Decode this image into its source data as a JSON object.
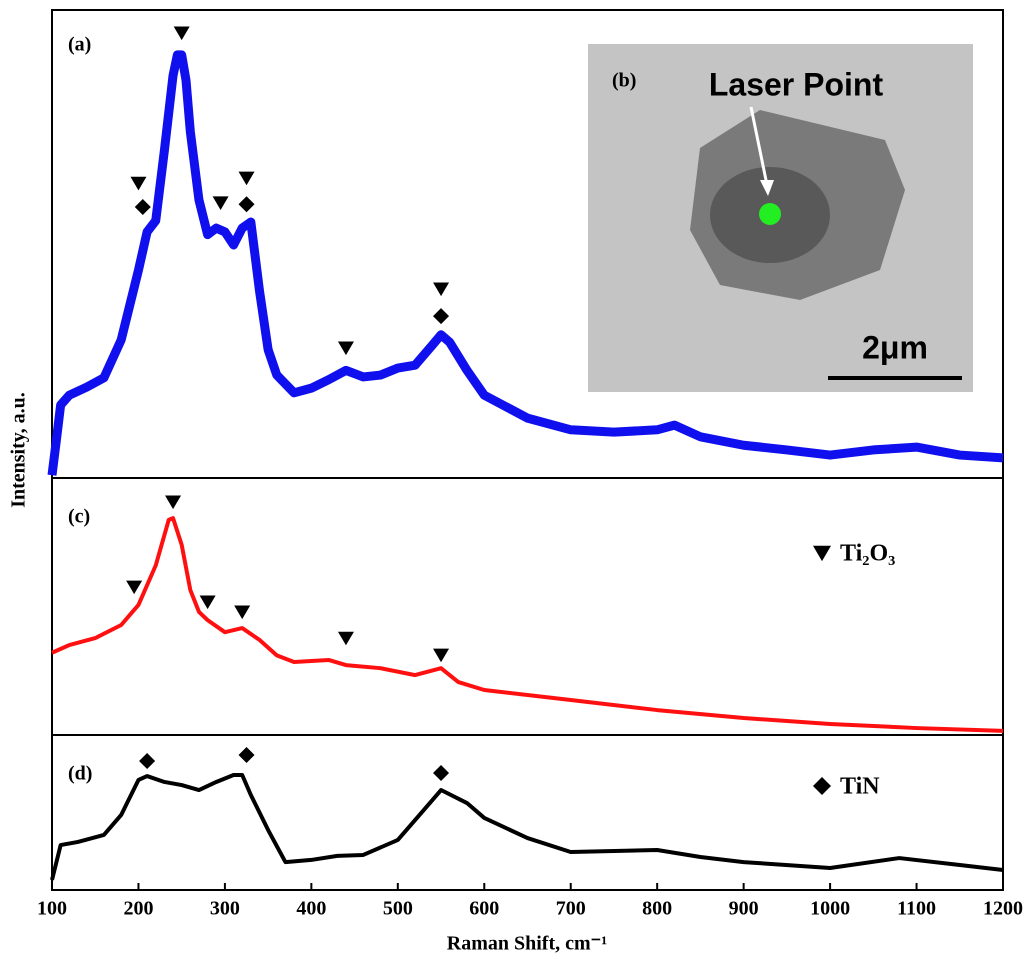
{
  "chart_data": [
    {
      "type": "line",
      "label": "(a)",
      "ylabel": "Intensity, a.u.",
      "color": "#1010ee",
      "xlim": [
        100,
        1200
      ],
      "ylim": [
        0,
        100
      ],
      "x": [
        100,
        105,
        110,
        120,
        140,
        160,
        180,
        200,
        210,
        220,
        230,
        240,
        245,
        250,
        255,
        260,
        270,
        280,
        290,
        300,
        310,
        320,
        330,
        340,
        350,
        360,
        380,
        400,
        420,
        440,
        460,
        480,
        500,
        520,
        540,
        550,
        560,
        580,
        600,
        650,
        700,
        750,
        800,
        820,
        850,
        900,
        950,
        1000,
        1050,
        1100,
        1150,
        1200
      ],
      "values": [
        0.6,
        8,
        15.6,
        17.7,
        19.4,
        21.4,
        29.5,
        44.4,
        52.6,
        55,
        70,
        86,
        90.4,
        90.4,
        85,
        74,
        59.4,
        52,
        53.4,
        52.6,
        49.8,
        53.4,
        54.7,
        40,
        27.4,
        22,
        18.2,
        19.2,
        21,
        23,
        21.6,
        22,
        23.5,
        24.1,
        28.4,
        30.6,
        29,
        23,
        17.7,
        12.8,
        10.3,
        9.8,
        10.3,
        11.3,
        8.8,
        7,
        6,
        4.9,
        6,
        6.6,
        4.9,
        4.3
      ],
      "peaks": [
        {
          "marker": "triangle",
          "x": [
            200,
            250,
            295,
            325,
            440,
            550
          ],
          "values": [
            63,
            95.1,
            58.8,
            64.1,
            27.8,
            40.4
          ]
        },
        {
          "marker": "diamond",
          "x": [
            205,
            325,
            550
          ],
          "values": [
            57.9,
            58.5,
            34.6
          ]
        }
      ],
      "inset": {
        "label": "(b)",
        "text": "Laser Point",
        "scale_bar": "2μm"
      }
    },
    {
      "type": "line",
      "label": "(c)",
      "color": "#ff1010",
      "xlim": [
        100,
        1200
      ],
      "ylim": [
        0,
        100
      ],
      "x": [
        100,
        120,
        150,
        180,
        200,
        220,
        235,
        240,
        250,
        260,
        270,
        280,
        300,
        320,
        340,
        360,
        380,
        420,
        440,
        480,
        520,
        550,
        570,
        600,
        700,
        800,
        900,
        1000,
        1100,
        1200
      ],
      "values": [
        32,
        35,
        37.7,
        42.8,
        50.6,
        66,
        83.7,
        84.4,
        74,
        56.4,
        47.9,
        44.7,
        40,
        41.6,
        37,
        31,
        28.4,
        29.2,
        27.2,
        26,
        23.3,
        26,
        20.6,
        17.5,
        13.6,
        9.7,
        6.6,
        4.3,
        2.7,
        1.6
      ],
      "peaks": [
        {
          "marker": "triangle",
          "x": [
            195,
            240,
            280,
            320,
            440,
            550
          ],
          "values": [
            57.6,
            90.7,
            51.8,
            47.9,
            37.7,
            31.1
          ]
        }
      ],
      "legend": {
        "marker": "triangle",
        "text": "Ti₂O₃"
      }
    },
    {
      "type": "line",
      "label": "(d)",
      "color": "#000000",
      "xlim": [
        100,
        1200
      ],
      "ylim": [
        0,
        100
      ],
      "x": [
        100,
        110,
        130,
        160,
        180,
        200,
        210,
        230,
        250,
        270,
        290,
        310,
        320,
        330,
        350,
        370,
        400,
        430,
        460,
        500,
        530,
        550,
        580,
        600,
        650,
        700,
        800,
        850,
        900,
        1000,
        1080,
        1150,
        1200
      ],
      "values": [
        6.5,
        29,
        31,
        35.5,
        48.4,
        71,
        73.5,
        69.7,
        67.7,
        64.5,
        69.7,
        74.2,
        74.2,
        61.3,
        38.7,
        18,
        19.4,
        22,
        22.6,
        32.3,
        51.6,
        64.5,
        56.1,
        46.5,
        33.5,
        24.5,
        25.8,
        21.3,
        18,
        14.2,
        20.6,
        16.1,
        12.9
      ],
      "peaks": [
        {
          "marker": "diamond",
          "x": [
            210,
            325,
            550
          ],
          "values": [
            83.2,
            87.1,
            75.5
          ]
        }
      ],
      "legend": {
        "marker": "diamond",
        "text": "TiN"
      },
      "xlabel": "Raman Shift, cm⁻¹",
      "xticks": [
        100,
        200,
        300,
        400,
        500,
        600,
        700,
        800,
        900,
        1000,
        1100,
        1200
      ]
    }
  ]
}
